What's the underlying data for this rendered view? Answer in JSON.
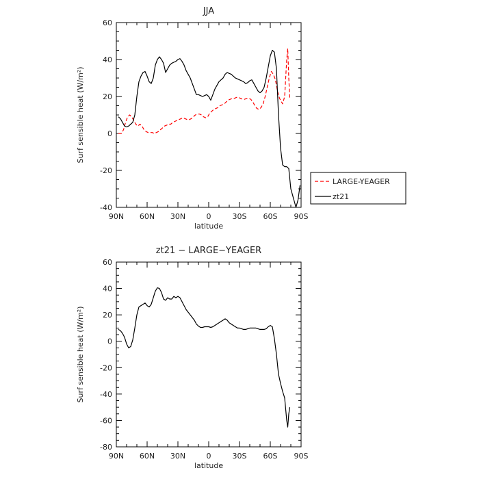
{
  "chart_data": [
    {
      "type": "line",
      "title": "JJA",
      "xlabel": "latitude",
      "ylabel": "Surf sensible heat (W/m²)",
      "xlim": [
        90,
        -90
      ],
      "ylim": [
        -40,
        60
      ],
      "x_ticks": [
        90,
        60,
        30,
        0,
        -30,
        -60,
        -90
      ],
      "x_tick_labels": [
        "90N",
        "60N",
        "30N",
        "0",
        "30S",
        "60S",
        "90S"
      ],
      "y_ticks": [
        -40,
        -20,
        0,
        20,
        40,
        60
      ],
      "y_tick_labels": [
        "-40",
        "-20",
        "0",
        "20",
        "40",
        "60"
      ],
      "legend_position": "outside-right",
      "series": [
        {
          "name": "LARGE-YEAGER",
          "color": "#ff0000",
          "dash": "dashed",
          "points": [
            [
              88,
              0
            ],
            [
              85,
              0
            ],
            [
              83,
              2
            ],
            [
              81,
              6
            ],
            [
              79,
              9
            ],
            [
              77,
              10
            ],
            [
              75,
              9
            ],
            [
              73,
              7
            ],
            [
              71,
              5
            ],
            [
              69,
              4
            ],
            [
              67,
              5
            ],
            [
              65,
              4
            ],
            [
              63,
              2
            ],
            [
              61,
              1
            ],
            [
              59,
              0.5
            ],
            [
              57,
              0.5
            ],
            [
              55,
              0.5
            ],
            [
              53,
              0
            ],
            [
              51,
              0.5
            ],
            [
              49,
              1
            ],
            [
              47,
              2
            ],
            [
              45,
              3
            ],
            [
              43,
              4
            ],
            [
              41,
              4.5
            ],
            [
              39,
              5
            ],
            [
              37,
              5
            ],
            [
              35,
              6
            ],
            [
              33,
              6.5
            ],
            [
              31,
              7
            ],
            [
              29,
              7.5
            ],
            [
              27,
              8
            ],
            [
              25,
              8.5
            ],
            [
              23,
              8
            ],
            [
              21,
              7.5
            ],
            [
              19,
              7.5
            ],
            [
              17,
              8
            ],
            [
              15,
              9
            ],
            [
              13,
              10
            ],
            [
              11,
              10.5
            ],
            [
              9,
              10.5
            ],
            [
              7,
              10
            ],
            [
              5,
              9
            ],
            [
              3,
              8.5
            ],
            [
              1,
              9
            ],
            [
              -1,
              11
            ],
            [
              -3,
              12
            ],
            [
              -5,
              13
            ],
            [
              -7,
              13.5
            ],
            [
              -9,
              14
            ],
            [
              -11,
              15
            ],
            [
              -13,
              15.5
            ],
            [
              -15,
              16
            ],
            [
              -17,
              17
            ],
            [
              -19,
              18
            ],
            [
              -21,
              18.5
            ],
            [
              -23,
              19
            ],
            [
              -25,
              19
            ],
            [
              -27,
              19.5
            ],
            [
              -29,
              19.5
            ],
            [
              -31,
              19
            ],
            [
              -33,
              18.5
            ],
            [
              -35,
              18.5
            ],
            [
              -37,
              19
            ],
            [
              -39,
              19
            ],
            [
              -41,
              18.5
            ],
            [
              -43,
              17
            ],
            [
              -45,
              15
            ],
            [
              -47,
              13.5
            ],
            [
              -49,
              13
            ],
            [
              -51,
              14
            ],
            [
              -53,
              16
            ],
            [
              -55,
              20
            ],
            [
              -57,
              25
            ],
            [
              -59,
              30
            ],
            [
              -61,
              33.5
            ],
            [
              -63,
              32
            ],
            [
              -65,
              29
            ],
            [
              -67,
              23
            ],
            [
              -69,
              19
            ],
            [
              -71,
              17
            ],
            [
              -72,
              16
            ],
            [
              -74,
              20
            ],
            [
              -76,
              40
            ],
            [
              -77,
              46
            ],
            [
              -78,
              30
            ],
            [
              -79,
              19
            ]
          ]
        },
        {
          "name": "zt21",
          "color": "#000000",
          "dash": "solid",
          "points": [
            [
              88,
              9
            ],
            [
              86,
              8
            ],
            [
              84,
              6
            ],
            [
              82,
              4
            ],
            [
              80,
              3.5
            ],
            [
              78,
              4
            ],
            [
              76,
              5
            ],
            [
              74,
              6
            ],
            [
              72,
              10
            ],
            [
              70,
              20
            ],
            [
              68,
              28
            ],
            [
              66,
              31
            ],
            [
              64,
              33
            ],
            [
              62,
              33.5
            ],
            [
              60,
              31
            ],
            [
              58,
              28
            ],
            [
              56,
              27
            ],
            [
              54,
              30
            ],
            [
              52,
              37
            ],
            [
              50,
              40
            ],
            [
              48,
              41.5
            ],
            [
              46,
              40
            ],
            [
              44,
              38
            ],
            [
              42,
              33
            ],
            [
              40,
              35
            ],
            [
              38,
              37
            ],
            [
              36,
              38
            ],
            [
              34,
              38.5
            ],
            [
              32,
              39
            ],
            [
              30,
              40
            ],
            [
              28,
              40.5
            ],
            [
              26,
              39
            ],
            [
              24,
              37
            ],
            [
              22,
              34
            ],
            [
              20,
              32
            ],
            [
              18,
              30
            ],
            [
              16,
              27
            ],
            [
              14,
              24
            ],
            [
              12,
              21
            ],
            [
              10,
              21
            ],
            [
              8,
              20.5
            ],
            [
              6,
              20
            ],
            [
              4,
              20.5
            ],
            [
              2,
              21
            ],
            [
              0,
              20
            ],
            [
              -2,
              18
            ],
            [
              -4,
              21
            ],
            [
              -6,
              24
            ],
            [
              -8,
              26
            ],
            [
              -10,
              28
            ],
            [
              -12,
              29
            ],
            [
              -14,
              30
            ],
            [
              -16,
              32
            ],
            [
              -18,
              33
            ],
            [
              -20,
              32.5
            ],
            [
              -22,
              32
            ],
            [
              -24,
              31
            ],
            [
              -26,
              30
            ],
            [
              -28,
              29.5
            ],
            [
              -30,
              29
            ],
            [
              -32,
              28.5
            ],
            [
              -34,
              28
            ],
            [
              -36,
              27
            ],
            [
              -38,
              27.5
            ],
            [
              -40,
              28.5
            ],
            [
              -42,
              29
            ],
            [
              -44,
              27
            ],
            [
              -46,
              25
            ],
            [
              -48,
              23
            ],
            [
              -50,
              22
            ],
            [
              -52,
              23
            ],
            [
              -54,
              25
            ],
            [
              -56,
              30
            ],
            [
              -58,
              36
            ],
            [
              -60,
              42
            ],
            [
              -62,
              45
            ],
            [
              -64,
              44
            ],
            [
              -66,
              35
            ],
            [
              -68,
              10
            ],
            [
              -70,
              -8
            ],
            [
              -72,
              -17
            ],
            [
              -74,
              -18
            ],
            [
              -76,
              -18
            ],
            [
              -78,
              -19
            ],
            [
              -80,
              -30
            ],
            [
              -82,
              -34
            ],
            [
              -84,
              -38
            ],
            [
              -85,
              -40
            ],
            [
              -87,
              -36
            ],
            [
              -89,
              -28
            ]
          ]
        }
      ]
    },
    {
      "type": "line",
      "title": "zt21 − LARGE−YEAGER",
      "xlabel": "latitude",
      "ylabel": "Surf sensible heat (W/m²)",
      "xlim": [
        90,
        -90
      ],
      "ylim": [
        -80,
        60
      ],
      "x_ticks": [
        90,
        60,
        30,
        0,
        -30,
        -60,
        -90
      ],
      "x_tick_labels": [
        "90N",
        "60N",
        "30N",
        "0",
        "30S",
        "60S",
        "90S"
      ],
      "y_ticks": [
        -80,
        -60,
        -40,
        -20,
        0,
        20,
        40,
        60
      ],
      "y_tick_labels": [
        "-80",
        "-60",
        "-40",
        "-20",
        "0",
        "20",
        "40",
        "60"
      ],
      "series": [
        {
          "name": "zt21 − LARGE−YEAGER",
          "color": "#000000",
          "dash": "solid",
          "points": [
            [
              88,
              9
            ],
            [
              86,
              8
            ],
            [
              84,
              6
            ],
            [
              82,
              3
            ],
            [
              80,
              -2
            ],
            [
              78,
              -5
            ],
            [
              76,
              -4
            ],
            [
              74,
              1
            ],
            [
              72,
              10
            ],
            [
              70,
              20
            ],
            [
              68,
              26
            ],
            [
              66,
              27
            ],
            [
              64,
              28
            ],
            [
              62,
              29
            ],
            [
              60,
              27
            ],
            [
              58,
              26
            ],
            [
              56,
              28
            ],
            [
              54,
              33
            ],
            [
              52,
              38
            ],
            [
              50,
              40.5
            ],
            [
              48,
              40
            ],
            [
              46,
              37
            ],
            [
              44,
              32
            ],
            [
              42,
              31
            ],
            [
              40,
              33
            ],
            [
              38,
              32
            ],
            [
              36,
              32
            ],
            [
              34,
              34
            ],
            [
              32,
              33
            ],
            [
              30,
              34
            ],
            [
              28,
              33
            ],
            [
              26,
              30
            ],
            [
              24,
              27
            ],
            [
              22,
              24
            ],
            [
              20,
              22
            ],
            [
              18,
              20
            ],
            [
              16,
              18
            ],
            [
              14,
              16
            ],
            [
              12,
              13
            ],
            [
              10,
              11.5
            ],
            [
              8,
              10.5
            ],
            [
              6,
              10.5
            ],
            [
              4,
              11
            ],
            [
              2,
              11
            ],
            [
              0,
              11
            ],
            [
              -2,
              10.5
            ],
            [
              -4,
              11
            ],
            [
              -6,
              12
            ],
            [
              -8,
              13
            ],
            [
              -10,
              14
            ],
            [
              -12,
              15
            ],
            [
              -14,
              16
            ],
            [
              -16,
              17
            ],
            [
              -18,
              16
            ],
            [
              -20,
              14
            ],
            [
              -22,
              13
            ],
            [
              -24,
              12
            ],
            [
              -26,
              11
            ],
            [
              -28,
              10
            ],
            [
              -30,
              10
            ],
            [
              -32,
              9.5
            ],
            [
              -34,
              9
            ],
            [
              -36,
              9
            ],
            [
              -38,
              9.5
            ],
            [
              -40,
              10
            ],
            [
              -42,
              10
            ],
            [
              -44,
              10
            ],
            [
              -46,
              10
            ],
            [
              -48,
              9.5
            ],
            [
              -50,
              9
            ],
            [
              -52,
              9
            ],
            [
              -54,
              9
            ],
            [
              -56,
              9.5
            ],
            [
              -58,
              11
            ],
            [
              -60,
              12
            ],
            [
              -62,
              11
            ],
            [
              -64,
              2
            ],
            [
              -66,
              -10
            ],
            [
              -68,
              -25
            ],
            [
              -70,
              -32
            ],
            [
              -72,
              -38
            ],
            [
              -74,
              -43
            ],
            [
              -76,
              -60
            ],
            [
              -77,
              -65
            ],
            [
              -78,
              -55
            ],
            [
              -79,
              -50
            ]
          ]
        }
      ]
    }
  ]
}
